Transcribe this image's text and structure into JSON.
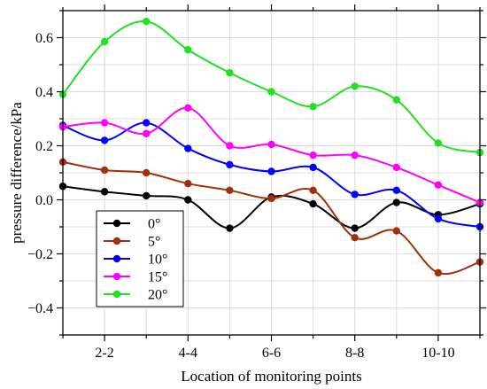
{
  "chart_data": {
    "type": "line",
    "xlabel": "Location of monitoring points",
    "ylabel": "pressure difference/kPa",
    "x": [
      1,
      2,
      3,
      4,
      5,
      6,
      7,
      8,
      9,
      10,
      11
    ],
    "xlim": [
      1,
      11
    ],
    "ylim": [
      -0.5,
      0.7
    ],
    "x_ticks": [
      2,
      4,
      6,
      8,
      10
    ],
    "x_tick_labels": [
      "2-2",
      "4-4",
      "6-6",
      "8-8",
      "10-10"
    ],
    "y_ticks": [
      -0.4,
      -0.2,
      0.0,
      0.2,
      0.4,
      0.6
    ],
    "y_tick_labels": [
      "−0.4",
      "−0.2",
      "0.0",
      "0.2",
      "0.4",
      "0.6"
    ],
    "grid": true,
    "legend_position": "bottom-left",
    "series": [
      {
        "name": "0°",
        "color": "#000000",
        "values": [
          0.05,
          0.03,
          0.015,
          0.0,
          -0.105,
          0.01,
          -0.015,
          -0.105,
          -0.01,
          -0.055,
          -0.015
        ]
      },
      {
        "name": "5°",
        "color": "#a0300a",
        "values": [
          0.14,
          0.11,
          0.1,
          0.06,
          0.035,
          0.005,
          0.035,
          -0.14,
          -0.115,
          -0.27,
          -0.23
        ]
      },
      {
        "name": "10°",
        "color": "#0000ff",
        "values": [
          0.275,
          0.22,
          0.285,
          0.19,
          0.13,
          0.105,
          0.12,
          0.02,
          0.035,
          -0.07,
          -0.1
        ]
      },
      {
        "name": "15°",
        "color": "#ff00ff",
        "values": [
          0.27,
          0.285,
          0.245,
          0.34,
          0.2,
          0.205,
          0.165,
          0.165,
          0.12,
          0.055,
          -0.01
        ]
      },
      {
        "name": "20°",
        "color": "#22e022",
        "values": [
          0.39,
          0.585,
          0.66,
          0.555,
          0.47,
          0.4,
          0.345,
          0.42,
          0.37,
          0.21,
          0.175
        ]
      }
    ]
  }
}
